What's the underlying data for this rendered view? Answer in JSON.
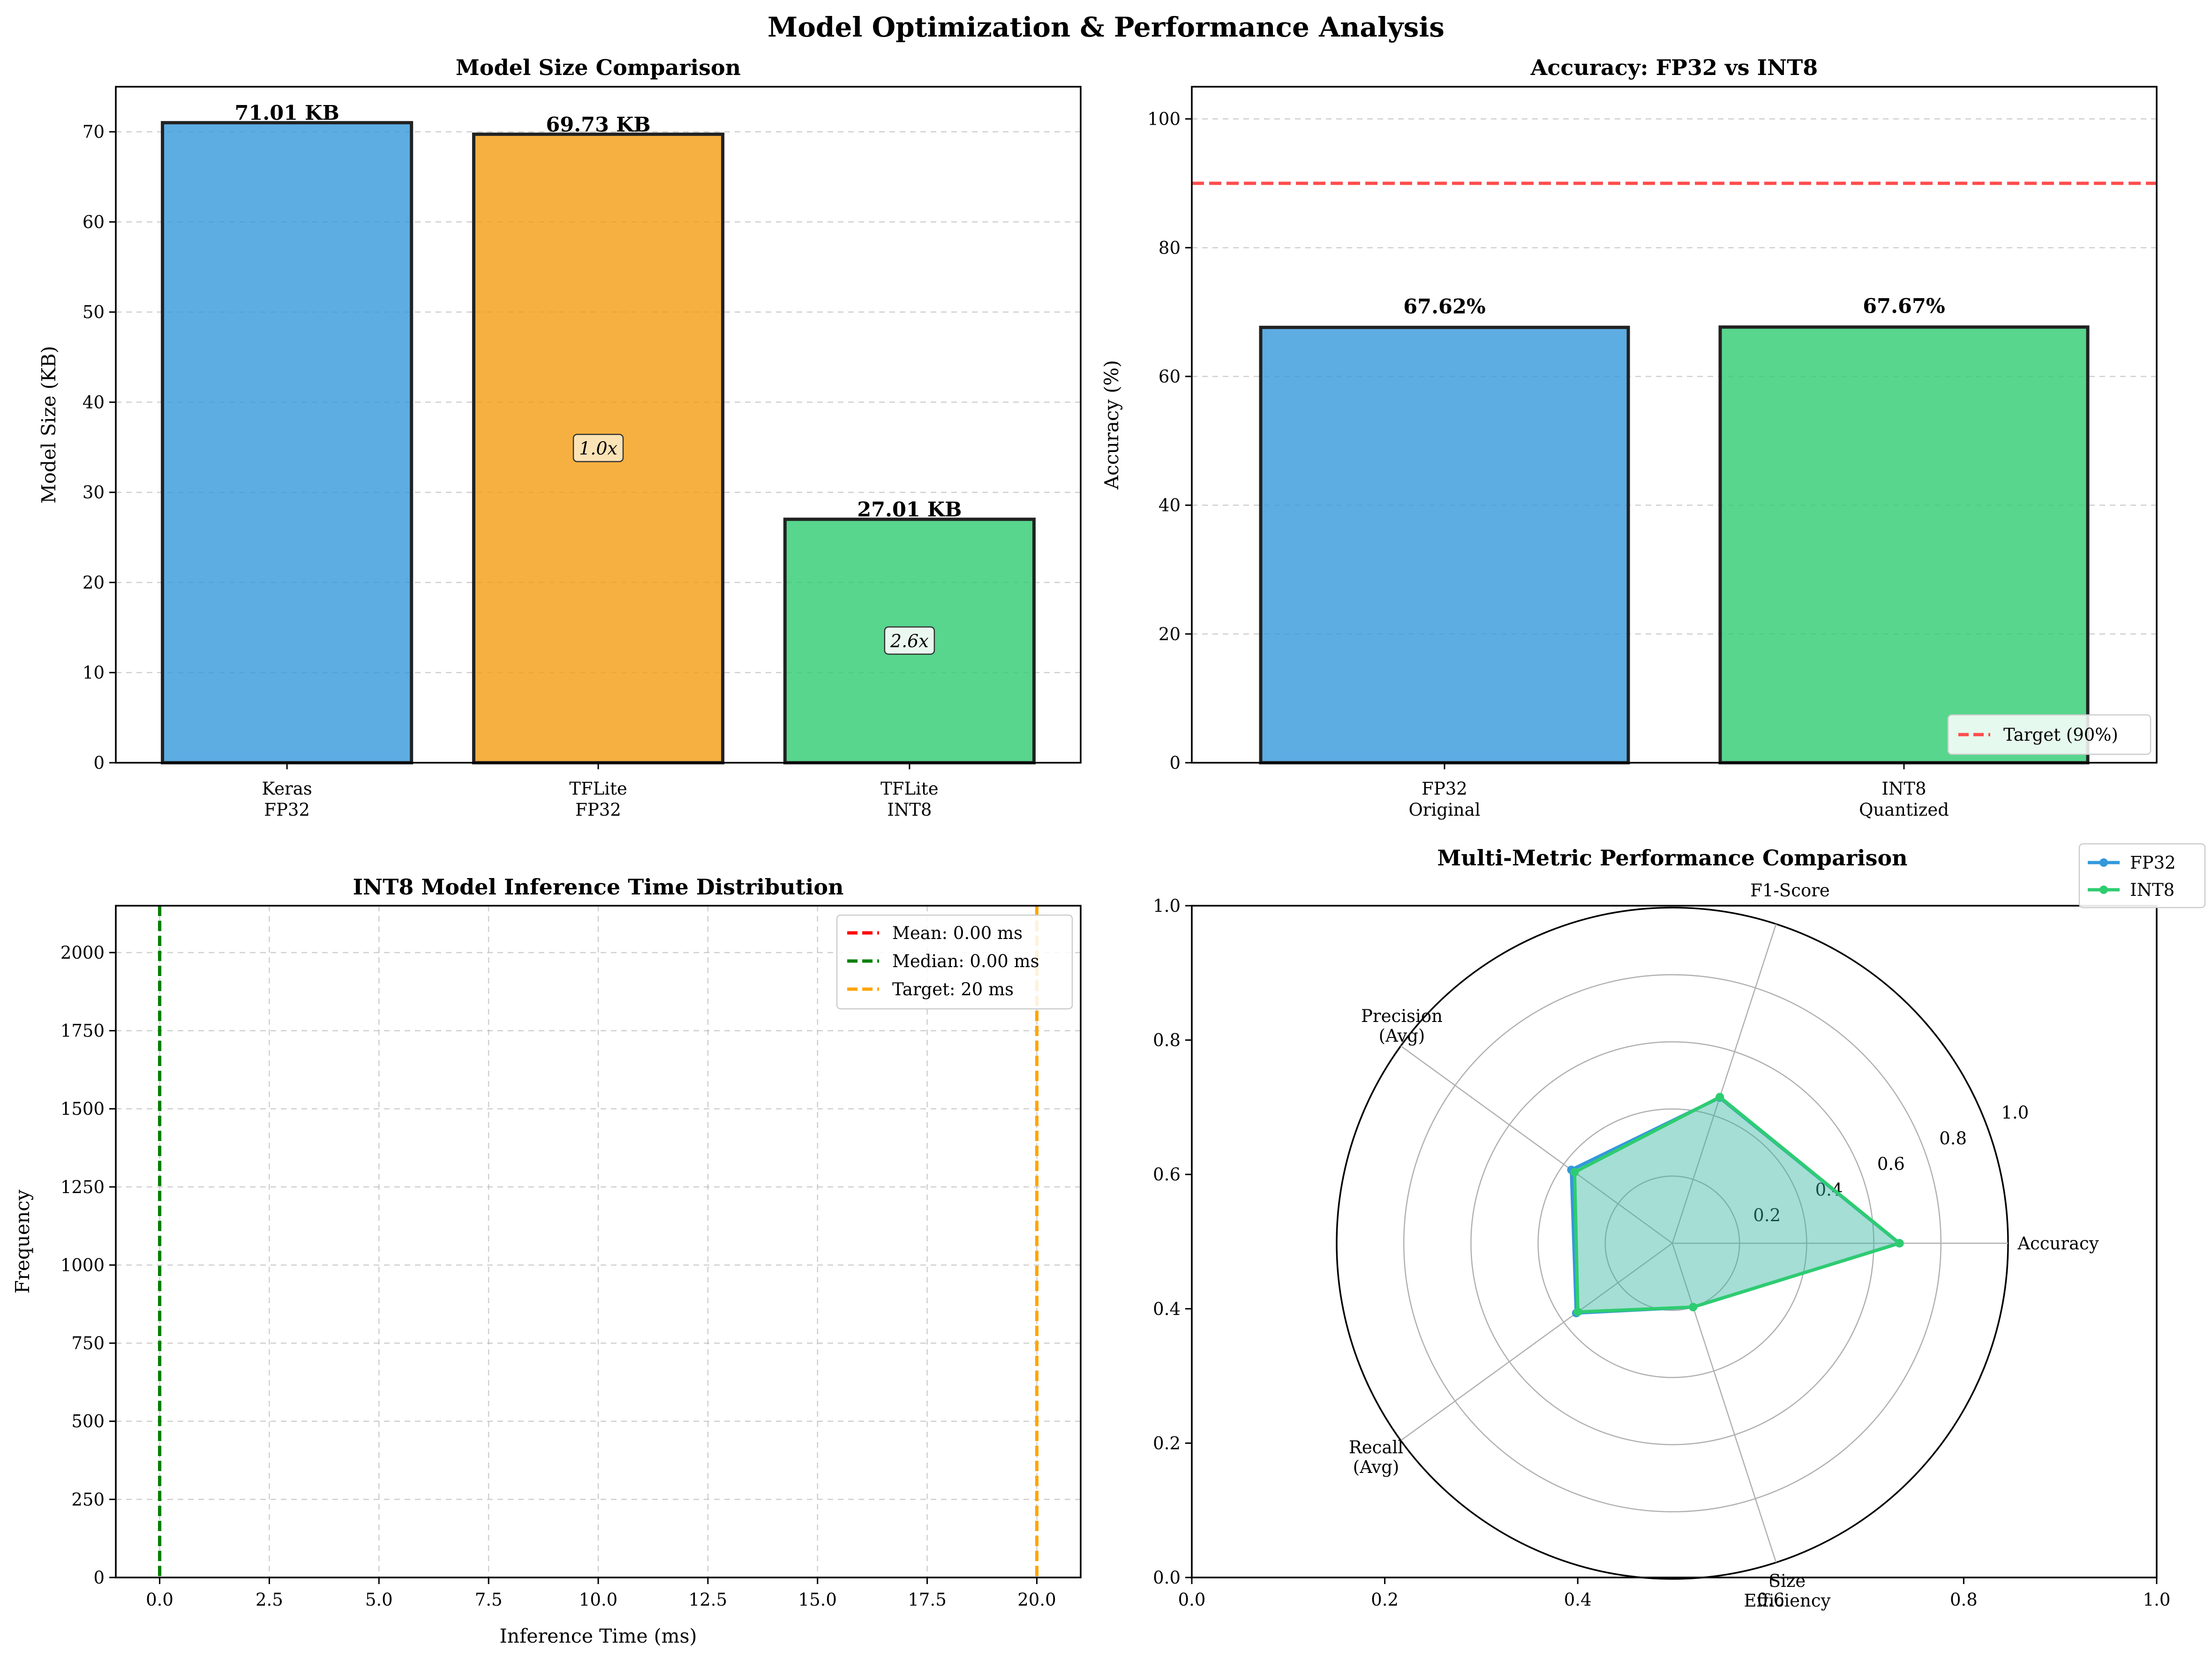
{
  "figure_title": "Model Optimization & Performance Analysis",
  "colors": {
    "blue": "#3498db",
    "orange": "#f39c12",
    "green": "#2ecc71",
    "red": "#ff0000",
    "darkgreen": "#008000",
    "target_orange": "#ffa500",
    "target_red": "#ff4d4d"
  },
  "chart_data": [
    {
      "type": "bar",
      "title": "Model Size Comparison",
      "xlabel": "",
      "ylabel": "Model Size (KB)",
      "categories": [
        [
          "Keras",
          "FP32"
        ],
        [
          "TFLite",
          "FP32"
        ],
        [
          "TFLite",
          "INT8"
        ]
      ],
      "values": [
        71.01,
        69.73,
        27.01
      ],
      "value_labels": [
        "71.01 KB",
        "69.73 KB",
        "27.01 KB"
      ],
      "ratio_labels": [
        null,
        "1.0x",
        "2.6x"
      ],
      "ylim": [
        0,
        75
      ],
      "yticks": [
        0,
        10,
        20,
        30,
        40,
        50,
        60,
        70
      ],
      "grid": true
    },
    {
      "type": "bar",
      "title": "Accuracy: FP32 vs INT8",
      "xlabel": "",
      "ylabel": "Accuracy (%)",
      "categories": [
        [
          "FP32",
          "Original"
        ],
        [
          "INT8",
          "Quantized"
        ]
      ],
      "values": [
        67.62,
        67.67
      ],
      "value_labels": [
        "67.62%",
        "67.67%"
      ],
      "target": 90,
      "legend": [
        "Target (90%)"
      ],
      "legend_position": "lower-right",
      "ylim": [
        0,
        105
      ],
      "yticks": [
        0,
        20,
        40,
        60,
        80,
        100
      ],
      "grid": true
    },
    {
      "type": "histogram",
      "title": "INT8 Model Inference Time Distribution",
      "xlabel": "Inference Time (ms)",
      "ylabel": "Frequency",
      "lines": [
        {
          "label": "Mean: 0.00 ms",
          "x": 0.0
        },
        {
          "label": "Median: 0.00 ms",
          "x": 0.0
        },
        {
          "label": "Target: 20 ms",
          "x": 20
        }
      ],
      "legend_position": "upper-right",
      "xlim": [
        -1,
        21
      ],
      "ylim": [
        0,
        2150
      ],
      "xticks": [
        "0.0",
        "2.5",
        "5.0",
        "7.5",
        "10.0",
        "12.5",
        "15.0",
        "17.5",
        "20.0"
      ],
      "xtick_values": [
        0,
        2.5,
        5,
        7.5,
        10,
        12.5,
        15,
        17.5,
        20
      ],
      "yticks": [
        "0",
        "250",
        "500",
        "750",
        "1000",
        "1250",
        "1500",
        "1750",
        "2000"
      ],
      "ytick_values": [
        0,
        250,
        500,
        750,
        1000,
        1250,
        1500,
        1750,
        2000
      ],
      "grid": true
    },
    {
      "type": "radar",
      "title": "Multi-Metric Performance Comparison",
      "axes": [
        "Accuracy",
        [
          "F1-Score"
        ],
        [
          "Precision",
          "(Avg)"
        ],
        [
          "Recall",
          "(Avg)"
        ],
        [
          "Size",
          "Efficiency"
        ]
      ],
      "series": [
        {
          "name": "FP32",
          "values": [
            0.676,
            0.456,
            0.372,
            0.354,
            0.2
          ]
        },
        {
          "name": "INT8",
          "values": [
            0.677,
            0.458,
            0.36,
            0.348,
            0.2
          ]
        }
      ],
      "rticks": [
        "0.2",
        "0.4",
        "0.6",
        "0.8",
        "1.0"
      ],
      "rtick_values": [
        0.2,
        0.4,
        0.6,
        0.8,
        1.0
      ],
      "rlim": [
        0,
        1.0
      ],
      "legend_position": "upper-right",
      "background_axis": {
        "xticks": [
          "0.0",
          "0.2",
          "0.4",
          "0.6",
          "0.8",
          "1.0"
        ],
        "yticks": [
          "0.0",
          "0.2",
          "0.4",
          "0.6",
          "0.8",
          "1.0"
        ]
      }
    }
  ]
}
